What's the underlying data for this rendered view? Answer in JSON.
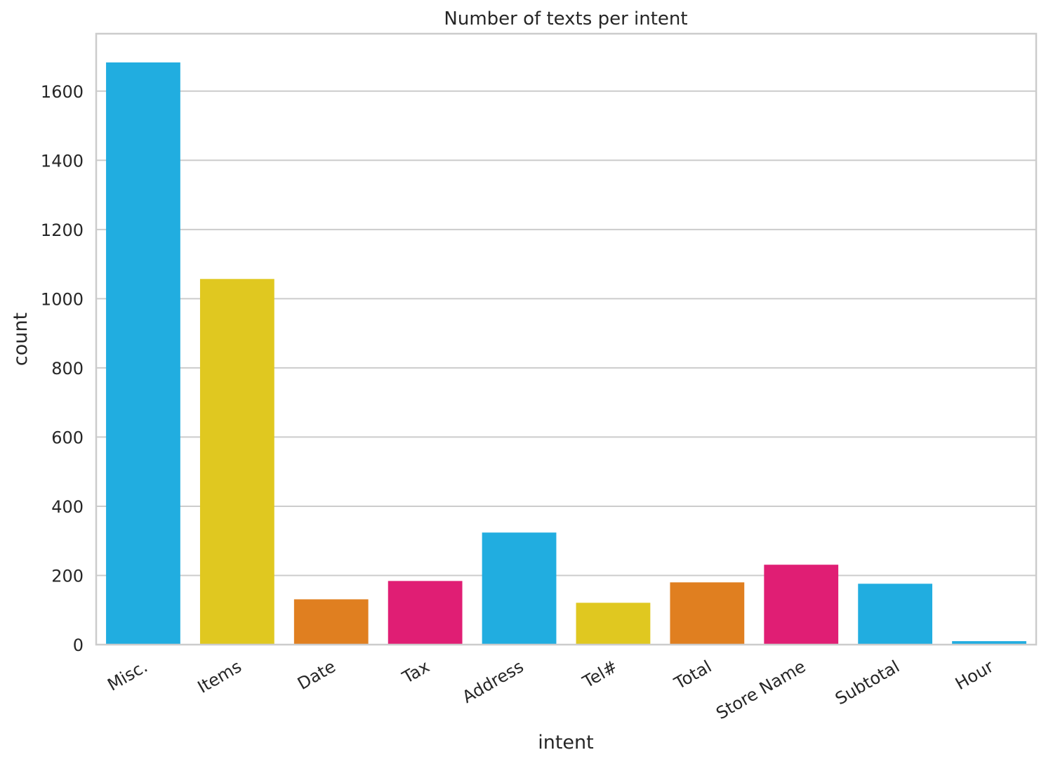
{
  "chart_data": {
    "type": "bar",
    "title": "Number of texts per intent",
    "xlabel": "intent",
    "ylabel": "count",
    "categories": [
      "Misc.",
      "Items",
      "Date",
      "Tax",
      "Address",
      "Tel#",
      "Total",
      "Store Name",
      "Subtotal",
      "Hour"
    ],
    "values": [
      1683,
      1057,
      131,
      184,
      324,
      121,
      180,
      231,
      176,
      10
    ],
    "colors": [
      "#21ade0",
      "#e0c820",
      "#e07f20",
      "#e01e74",
      "#21ade0",
      "#e0c820",
      "#e07f20",
      "#e01e74",
      "#21ade0",
      "#21ade0"
    ],
    "ylim": [
      0,
      1766
    ],
    "yticks": [
      0,
      200,
      400,
      600,
      800,
      1000,
      1200,
      1400,
      1600
    ],
    "ytick_labels": [
      "0",
      "200",
      "400",
      "600",
      "800",
      "1000",
      "1200",
      "1400",
      "1600"
    ],
    "grid": "horizontal",
    "legend": "none"
  }
}
